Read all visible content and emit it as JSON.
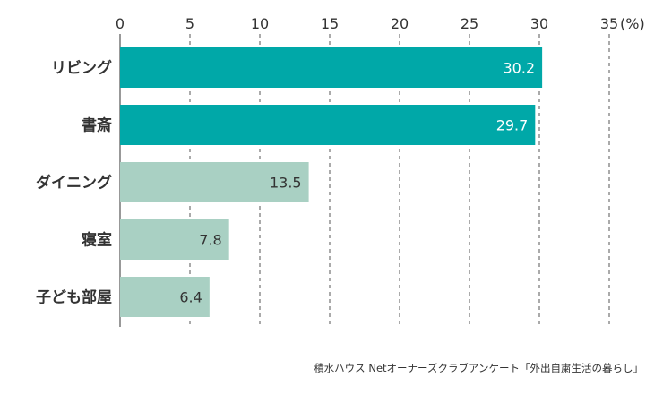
{
  "chart_data": {
    "type": "bar",
    "orientation": "horizontal",
    "categories": [
      "リビング",
      "書斎",
      "ダイニング",
      "寝室",
      "子ども部屋"
    ],
    "values": [
      30.2,
      29.7,
      13.5,
      7.8,
      6.4
    ],
    "value_labels": [
      "30.2",
      "29.7",
      "13.5",
      "7.8",
      "6.4"
    ],
    "xlim": [
      0,
      35
    ],
    "x_ticks": [
      0,
      5,
      10,
      15,
      20,
      25,
      30,
      35
    ],
    "x_tick_labels": [
      "0",
      "5",
      "10",
      "15",
      "20",
      "25",
      "30",
      "35"
    ],
    "unit_label": "(%)",
    "grid": "vertical dashed",
    "colors": {
      "highlight": "#00a8a8",
      "normal": "#a9d0c3",
      "highlight_text": "#ffffff",
      "normal_text": "#333333",
      "grid": "#555555"
    },
    "highlighted": [
      true,
      true,
      false,
      false,
      false
    ]
  },
  "source_note": "積水ハウス Netオーナーズクラブアンケート「外出自粛生活の暮らし」"
}
